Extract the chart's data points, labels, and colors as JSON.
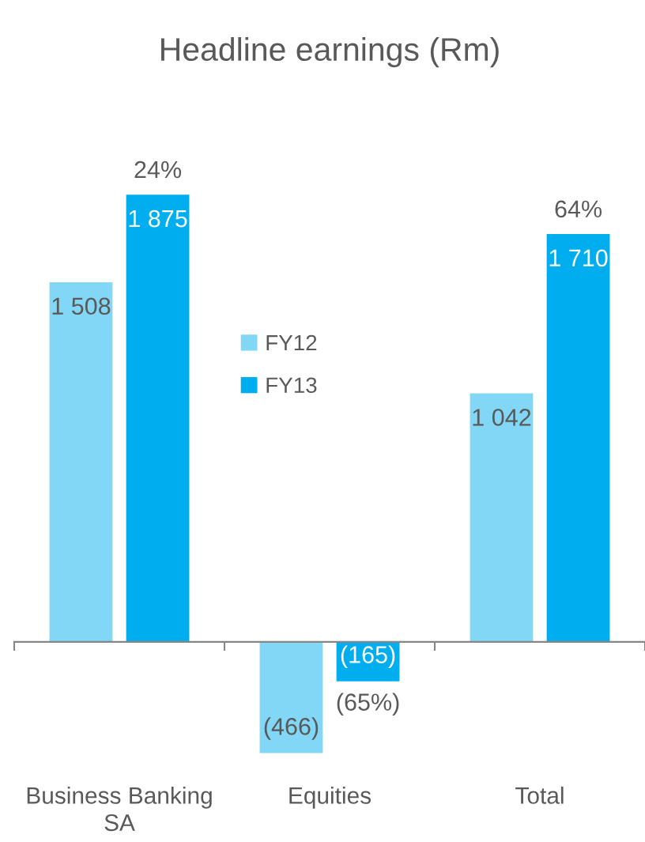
{
  "chart_data": {
    "type": "bar",
    "title": "Headline earnings (Rm)",
    "categories": [
      "Business Banking\nSA",
      "Equities",
      "Total"
    ],
    "series": [
      {
        "name": "FY12",
        "color": "#82d7f7",
        "values": [
          1508,
          -466,
          1042
        ],
        "value_labels": [
          "1 508",
          "(466)",
          "1 042"
        ]
      },
      {
        "name": "FY13",
        "color": "#00aeef",
        "values": [
          1875,
          -165,
          1710
        ],
        "value_labels": [
          "1 875",
          "(165)",
          "1 710"
        ]
      }
    ],
    "annotations": [
      "24%",
      "(65%)",
      "64%"
    ],
    "legend": "center"
  }
}
